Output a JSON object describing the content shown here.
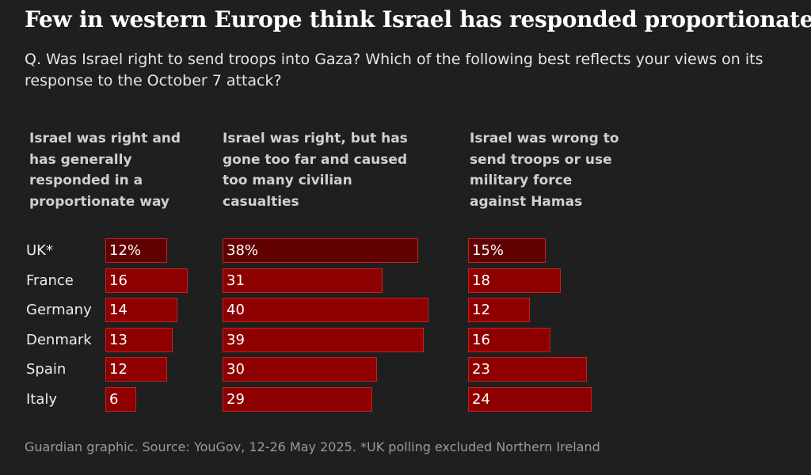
{
  "title": "Few in western Europe think Israel has responded proportionately",
  "subtitle": "Q. Was Israel right to send troops into Gaza? Which of the following best reflects your views on its response to the October 7 attack?",
  "source": "Guardian graphic. Source: YouGov, 12-26 May 2025. *UK polling excluded Northern Ireland",
  "colors": {
    "background": "#1f1f1f",
    "bar_fill": "#8e0000",
    "bar_fill_first_row": "#610000",
    "bar_border": "#c42222"
  },
  "chart_data": {
    "type": "bar",
    "orientation": "horizontal",
    "categories": [
      "UK*",
      "France",
      "Germany",
      "Denmark",
      "Spain",
      "Italy"
    ],
    "series": [
      {
        "name": "Israel was right and has generally responded in a proportionate way",
        "values": [
          12,
          16,
          14,
          13,
          12,
          6
        ],
        "labels": [
          "12%",
          "16",
          "14",
          "13",
          "12",
          "6"
        ]
      },
      {
        "name": "Israel was right, but has gone too far and caused too many civilian casualties",
        "values": [
          38,
          31,
          40,
          39,
          30,
          29
        ],
        "labels": [
          "38%",
          "31",
          "40",
          "39",
          "30",
          "29"
        ]
      },
      {
        "name": "Israel was wrong to send troops or use military force against Hamas",
        "values": [
          15,
          18,
          12,
          16,
          23,
          24
        ],
        "labels": [
          "15%",
          "18",
          "12",
          "16",
          "23",
          "24"
        ]
      }
    ],
    "unit": "%",
    "grid": false,
    "legend": "column headers above each panel"
  }
}
